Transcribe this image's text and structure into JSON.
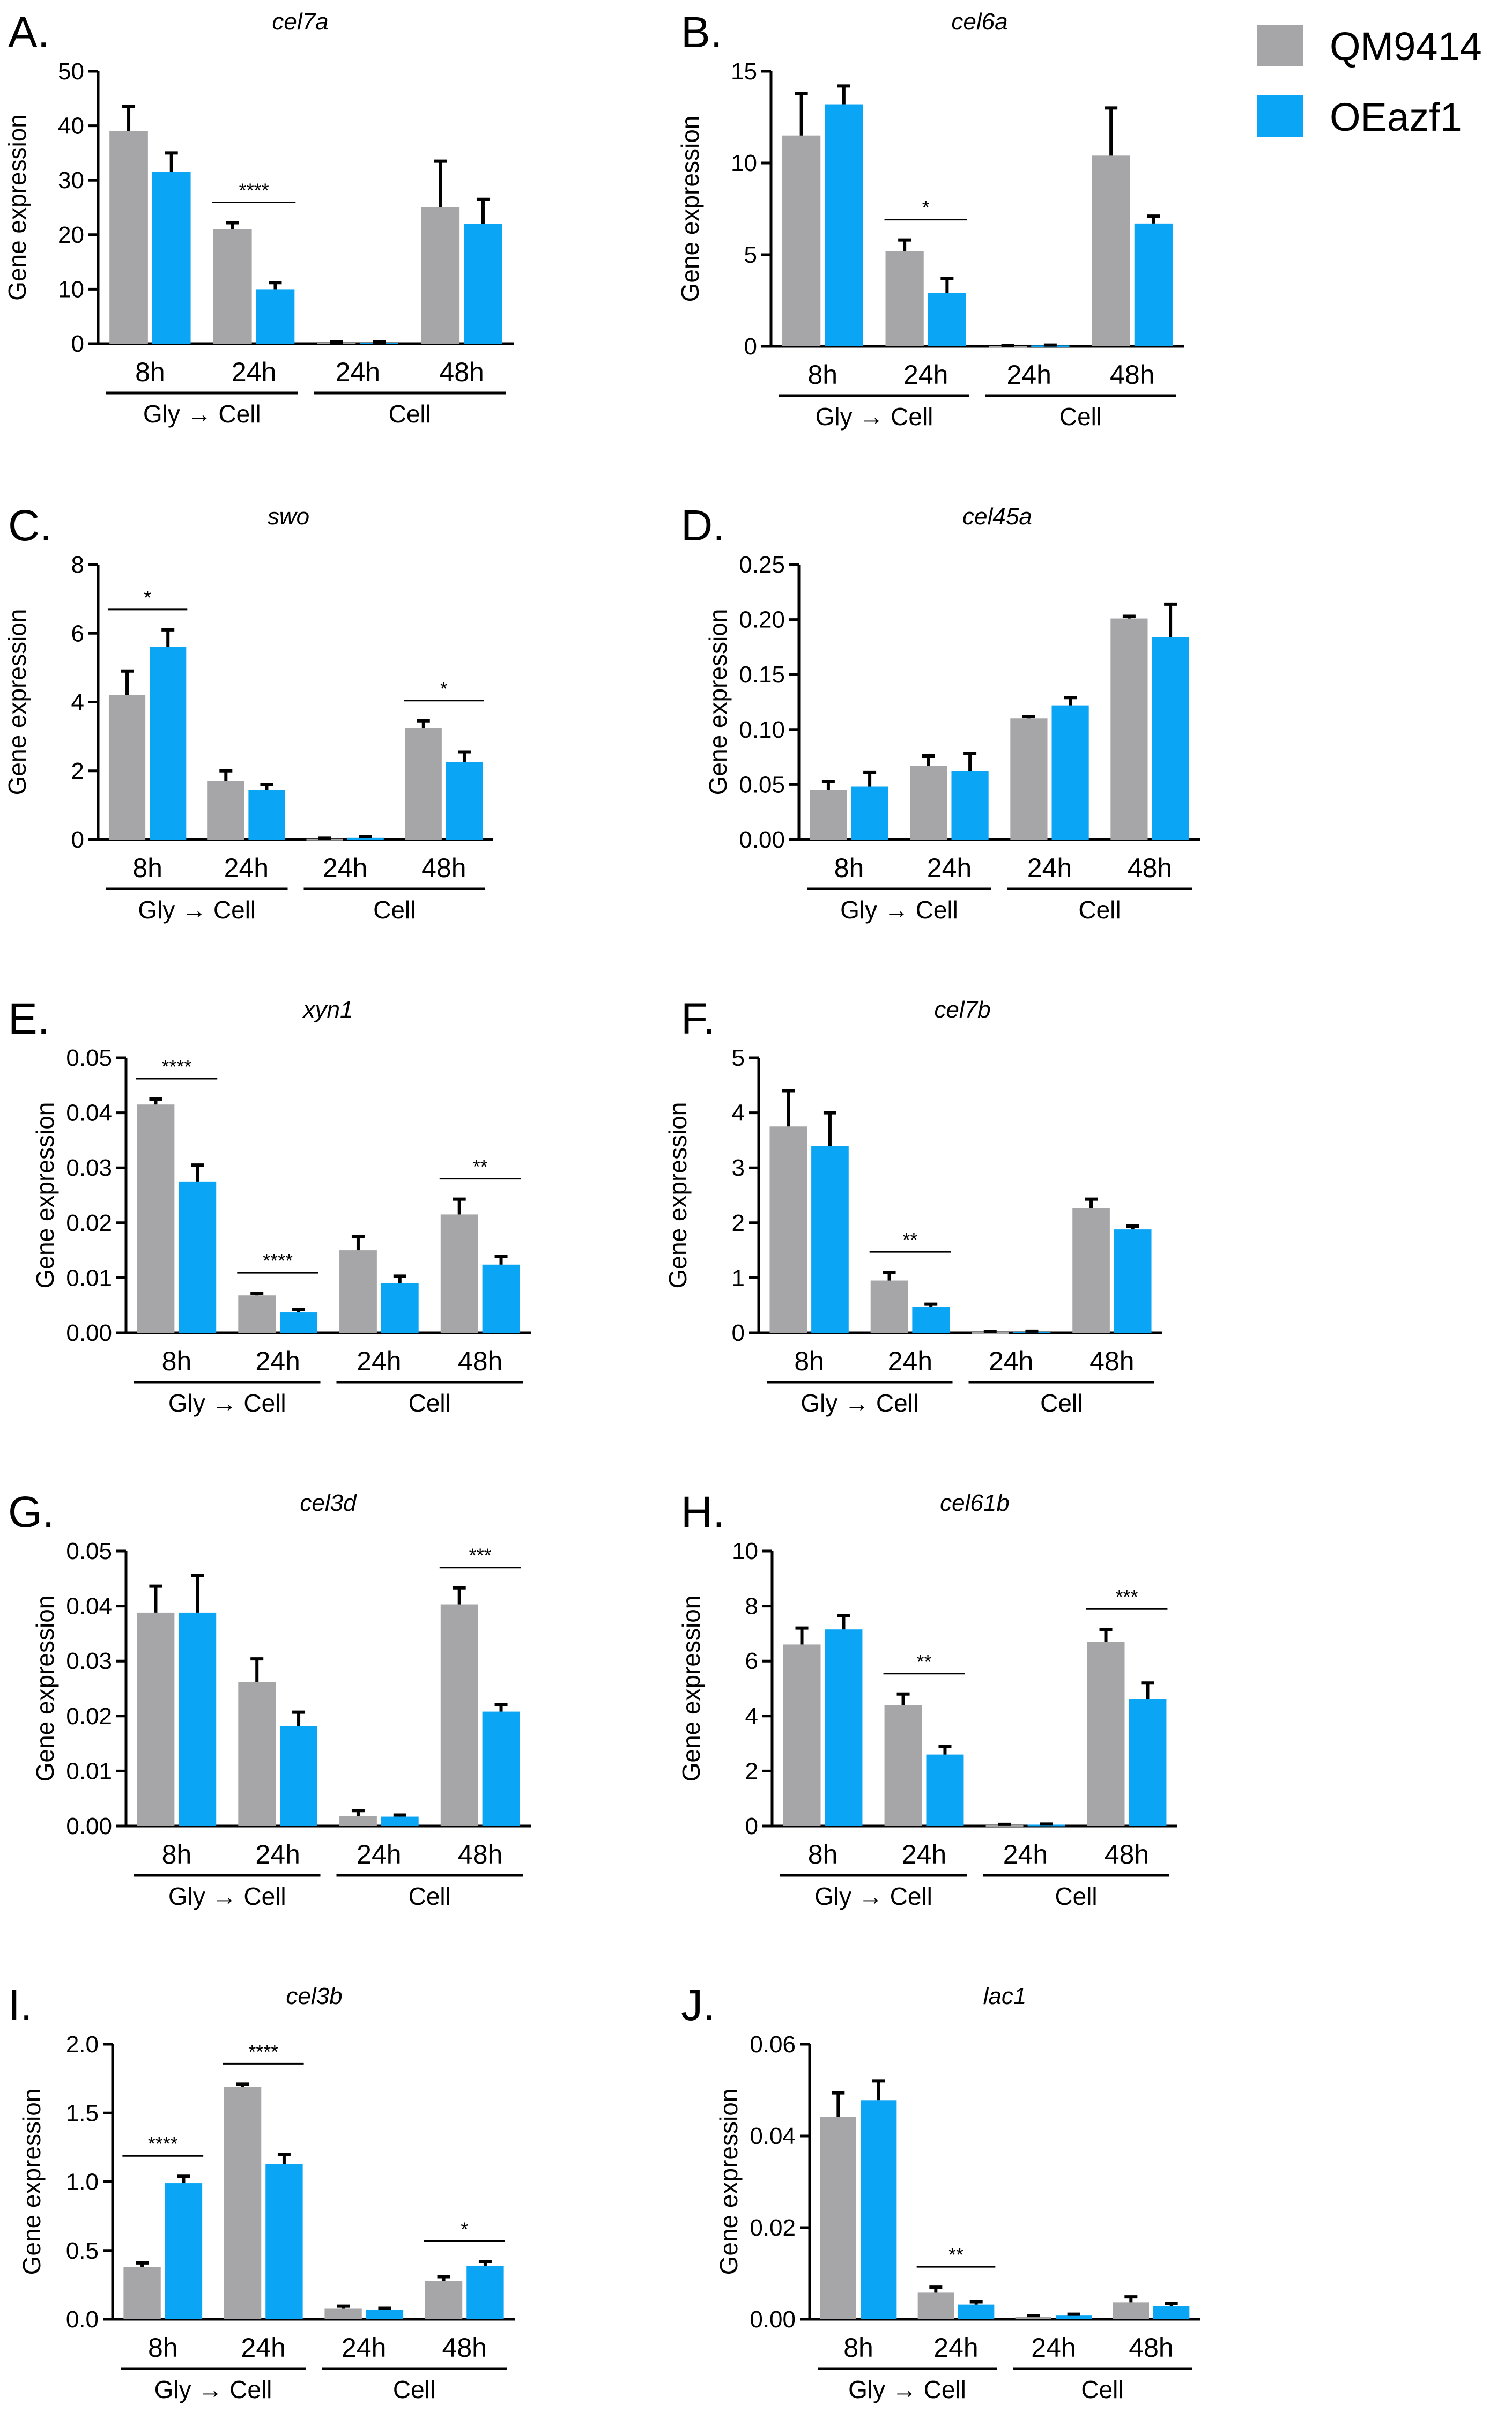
{
  "figure": {
    "legend": [
      {
        "name": "QM9414",
        "color": "#A6A6A8"
      },
      {
        "name": "OEazf1",
        "color": "#0AA5F5"
      }
    ],
    "series_colors": {
      "QM9414": "#A6A6A8",
      "OEazf1": "#0AA5F5"
    },
    "panel_letters": [
      "A.",
      "B.",
      "C.",
      "D.",
      "E.",
      "F.",
      "G.",
      "H.",
      "I.",
      "J."
    ]
  },
  "chart_data": [
    {
      "type": "bar",
      "panel": "A.",
      "title": "cel7a",
      "ylabel": "Gene expression",
      "categories": [
        "8h",
        "24h",
        "24h",
        "48h"
      ],
      "groups": [
        {
          "label": "Gly → Cell",
          "categories": [
            0,
            1
          ]
        },
        {
          "label": "Cell",
          "categories": [
            2,
            3
          ]
        }
      ],
      "ylim": [
        0,
        50
      ],
      "yticks": [
        "0",
        "10",
        "20",
        "30",
        "40",
        "50"
      ],
      "series": [
        {
          "name": "QM9414",
          "values": [
            39,
            21,
            0.2,
            25
          ],
          "errors": [
            4.5,
            1.2,
            0.1,
            8.5
          ]
        },
        {
          "name": "OEazf1",
          "values": [
            31.5,
            10,
            0.2,
            22
          ],
          "errors": [
            3.5,
            1.2,
            0.1,
            4.5
          ]
        }
      ],
      "significance": [
        {
          "category": 1,
          "label": "****"
        }
      ]
    },
    {
      "type": "bar",
      "panel": "B.",
      "title": "cel6a",
      "ylabel": "Gene expression",
      "categories": [
        "8h",
        "24h",
        "24h",
        "48h"
      ],
      "groups": [
        {
          "label": "Gly → Cell",
          "categories": [
            0,
            1
          ]
        },
        {
          "label": "Cell",
          "categories": [
            2,
            3
          ]
        }
      ],
      "ylim": [
        0,
        15
      ],
      "yticks": [
        "0",
        "5",
        "10",
        "15"
      ],
      "series": [
        {
          "name": "QM9414",
          "values": [
            11.5,
            5.2,
            0.02,
            10.4
          ],
          "errors": [
            2.3,
            0.6,
            0.02,
            2.6
          ]
        },
        {
          "name": "OEazf1",
          "values": [
            13.2,
            2.9,
            0.05,
            6.7
          ],
          "errors": [
            1,
            0.8,
            0.02,
            0.4
          ]
        }
      ],
      "significance": [
        {
          "category": 1,
          "label": "*"
        }
      ]
    },
    {
      "type": "bar",
      "panel": "C.",
      "title": "swo",
      "ylabel": "Gene expression",
      "categories": [
        "8h",
        "24h",
        "24h",
        "48h"
      ],
      "groups": [
        {
          "label": "Gly → Cell",
          "categories": [
            0,
            1
          ]
        },
        {
          "label": "Cell",
          "categories": [
            2,
            3
          ]
        }
      ],
      "ylim": [
        0,
        8
      ],
      "yticks": [
        "0",
        "2",
        "4",
        "6",
        "8"
      ],
      "series": [
        {
          "name": "QM9414",
          "values": [
            4.2,
            1.7,
            0.02,
            3.25
          ],
          "errors": [
            0.7,
            0.3,
            0.02,
            0.2
          ]
        },
        {
          "name": "OEazf1",
          "values": [
            5.6,
            1.45,
            0.05,
            2.25
          ],
          "errors": [
            0.5,
            0.15,
            0.03,
            0.3
          ]
        }
      ],
      "significance": [
        {
          "category": 0,
          "label": "*"
        },
        {
          "category": 3,
          "label": "*"
        }
      ]
    },
    {
      "type": "bar",
      "panel": "D.",
      "title": "cel45a",
      "ylabel": "Gene expression",
      "categories": [
        "8h",
        "24h",
        "24h",
        "48h"
      ],
      "groups": [
        {
          "label": "Gly → Cell",
          "categories": [
            0,
            1
          ]
        },
        {
          "label": "Cell",
          "categories": [
            2,
            3
          ]
        }
      ],
      "ylim": [
        0,
        0.25
      ],
      "yticks": [
        "0.00",
        "0.05",
        "0.10",
        "0.15",
        "0.20",
        "0.25"
      ],
      "series": [
        {
          "name": "QM9414",
          "values": [
            0.045,
            0.067,
            0.11,
            0.201
          ],
          "errors": [
            0.008,
            0.009,
            0.002,
            0.002
          ]
        },
        {
          "name": "OEazf1",
          "values": [
            0.048,
            0.062,
            0.122,
            0.184
          ],
          "errors": [
            0.013,
            0.016,
            0.007,
            0.03
          ]
        }
      ],
      "significance": []
    },
    {
      "type": "bar",
      "panel": "E.",
      "title": "xyn1",
      "ylabel": "Gene expression",
      "categories": [
        "8h",
        "24h",
        "24h",
        "48h"
      ],
      "groups": [
        {
          "label": "Gly → Cell",
          "categories": [
            0,
            1
          ]
        },
        {
          "label": "Cell",
          "categories": [
            2,
            3
          ]
        }
      ],
      "ylim": [
        0,
        0.05
      ],
      "yticks": [
        "0.00",
        "0.01",
        "0.02",
        "0.03",
        "0.04",
        "0.05"
      ],
      "series": [
        {
          "name": "QM9414",
          "values": [
            0.0415,
            0.0068,
            0.015,
            0.0215
          ],
          "errors": [
            0.001,
            0.0004,
            0.0025,
            0.0028
          ]
        },
        {
          "name": "OEazf1",
          "values": [
            0.0275,
            0.0037,
            0.009,
            0.0124
          ],
          "errors": [
            0.003,
            0.0005,
            0.0013,
            0.0015
          ]
        }
      ],
      "significance": [
        {
          "category": 0,
          "label": "****"
        },
        {
          "category": 1,
          "label": "****"
        },
        {
          "category": 3,
          "label": "**"
        }
      ]
    },
    {
      "type": "bar",
      "panel": "F.",
      "title": "cel7b",
      "ylabel": "Gene expression",
      "categories": [
        "8h",
        "24h",
        "24h",
        "48h"
      ],
      "groups": [
        {
          "label": "Gly → Cell",
          "categories": [
            0,
            1
          ]
        },
        {
          "label": "Cell",
          "categories": [
            2,
            3
          ]
        }
      ],
      "ylim": [
        0,
        5
      ],
      "yticks": [
        "0",
        "1",
        "2",
        "3",
        "4",
        "5"
      ],
      "series": [
        {
          "name": "QM9414",
          "values": [
            3.75,
            0.95,
            0.01,
            2.27
          ],
          "errors": [
            0.65,
            0.15,
            0.01,
            0.16
          ]
        },
        {
          "name": "OEazf1",
          "values": [
            3.4,
            0.47,
            0.02,
            1.88
          ],
          "errors": [
            0.6,
            0.05,
            0.01,
            0.06
          ]
        }
      ],
      "significance": [
        {
          "category": 1,
          "label": "**"
        }
      ]
    },
    {
      "type": "bar",
      "panel": "G.",
      "title": "cel3d",
      "ylabel": "Gene expression",
      "categories": [
        "8h",
        "24h",
        "24h",
        "48h"
      ],
      "groups": [
        {
          "label": "Gly → Cell",
          "categories": [
            0,
            1
          ]
        },
        {
          "label": "Cell",
          "categories": [
            2,
            3
          ]
        }
      ],
      "ylim": [
        0,
        0.05
      ],
      "yticks": [
        "0.00",
        "0.01",
        "0.02",
        "0.03",
        "0.04",
        "0.05"
      ],
      "series": [
        {
          "name": "QM9414",
          "values": [
            0.0388,
            0.0262,
            0.0018,
            0.0403
          ],
          "errors": [
            0.0048,
            0.0042,
            0.001,
            0.003
          ]
        },
        {
          "name": "OEazf1",
          "values": [
            0.0388,
            0.0182,
            0.0017,
            0.0208
          ],
          "errors": [
            0.0068,
            0.0025,
            0.0003,
            0.0013
          ]
        }
      ],
      "significance": [
        {
          "category": 3,
          "label": "***"
        }
      ]
    },
    {
      "type": "bar",
      "panel": "H.",
      "title": "cel61b",
      "ylabel": "Gene expression",
      "categories": [
        "8h",
        "24h",
        "24h",
        "48h"
      ],
      "groups": [
        {
          "label": "Gly → Cell",
          "categories": [
            0,
            1
          ]
        },
        {
          "label": "Cell",
          "categories": [
            2,
            3
          ]
        }
      ],
      "ylim": [
        0,
        10
      ],
      "yticks": [
        "0",
        "2",
        "4",
        "6",
        "8",
        "10"
      ],
      "series": [
        {
          "name": "QM9414",
          "values": [
            6.6,
            4.4,
            0.04,
            6.7
          ],
          "errors": [
            0.6,
            0.4,
            0.02,
            0.45
          ]
        },
        {
          "name": "OEazf1",
          "values": [
            7.15,
            2.6,
            0.05,
            4.6
          ],
          "errors": [
            0.5,
            0.3,
            0.02,
            0.6
          ]
        }
      ],
      "significance": [
        {
          "category": 1,
          "label": "**"
        },
        {
          "category": 3,
          "label": "***"
        }
      ]
    },
    {
      "type": "bar",
      "panel": "I.",
      "title": "cel3b",
      "ylabel": "Gene expression",
      "categories": [
        "8h",
        "24h",
        "24h",
        "48h"
      ],
      "groups": [
        {
          "label": "Gly → Cell",
          "categories": [
            0,
            1
          ]
        },
        {
          "label": "Cell",
          "categories": [
            2,
            3
          ]
        }
      ],
      "ylim": [
        0,
        2.0
      ],
      "yticks": [
        "0.0",
        "0.5",
        "1.0",
        "1.5",
        "2.0"
      ],
      "series": [
        {
          "name": "QM9414",
          "values": [
            0.38,
            1.69,
            0.08,
            0.28
          ],
          "errors": [
            0.03,
            0.02,
            0.015,
            0.03
          ]
        },
        {
          "name": "OEazf1",
          "values": [
            0.99,
            1.13,
            0.07,
            0.39
          ],
          "errors": [
            0.05,
            0.07,
            0.01,
            0.03
          ]
        }
      ],
      "significance": [
        {
          "category": 0,
          "label": "****"
        },
        {
          "category": 1,
          "label": "****"
        },
        {
          "category": 3,
          "label": "*"
        }
      ]
    },
    {
      "type": "bar",
      "panel": "J.",
      "title": "lac1",
      "ylabel": "Gene expression",
      "categories": [
        "8h",
        "24h",
        "24h",
        "48h"
      ],
      "groups": [
        {
          "label": "Gly → Cell",
          "categories": [
            0,
            1
          ]
        },
        {
          "label": "Cell",
          "categories": [
            2,
            3
          ]
        }
      ],
      "ylim": [
        0,
        0.06
      ],
      "yticks": [
        "0.00",
        "0.02",
        "0.04",
        "0.06"
      ],
      "series": [
        {
          "name": "QM9414",
          "values": [
            0.0442,
            0.0058,
            0.0005,
            0.0037
          ],
          "errors": [
            0.0052,
            0.0012,
            0.0003,
            0.0012
          ]
        },
        {
          "name": "OEazf1",
          "values": [
            0.0478,
            0.0032,
            0.0008,
            0.0029
          ],
          "errors": [
            0.0042,
            0.0006,
            0.0003,
            0.0006
          ]
        }
      ],
      "significance": [
        {
          "category": 1,
          "label": "**"
        }
      ]
    }
  ]
}
